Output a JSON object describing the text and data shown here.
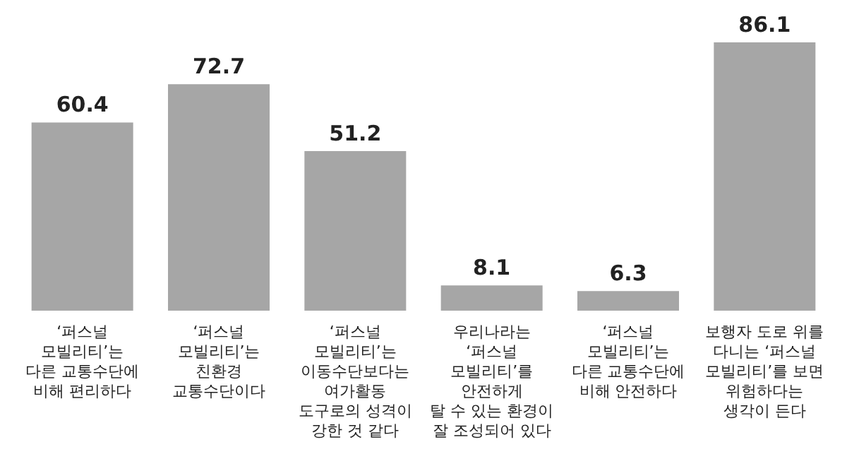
{
  "chart_data": {
    "type": "bar",
    "categories": [
      "‘퍼스널\n모빌리티’는\n다른 교통수단에\n비해 편리하다",
      "‘퍼스널\n모빌리티’는\n친환경\n교통수단이다",
      "‘퍼스널\n모빌리티’는\n이동수단보다는\n여가활동\n도구로의 성격이\n강한 것 같다",
      "우리나라는\n‘퍼스널\n모빌리티’를\n안전하게\n탈 수 있는 환경이\n잘 조성되어 있다",
      "‘퍼스널\n모빌리티’는\n다른 교통수단에\n비해 안전하다",
      "보행자 도로 위를\n다니는 ‘퍼스널\n모빌리티’를 보면\n위험하다는\n생각이 든다"
    ],
    "values": [
      60.4,
      72.7,
      51.2,
      8.1,
      6.3,
      86.1
    ],
    "color": "#a6a6a6",
    "data_labels": true
  }
}
